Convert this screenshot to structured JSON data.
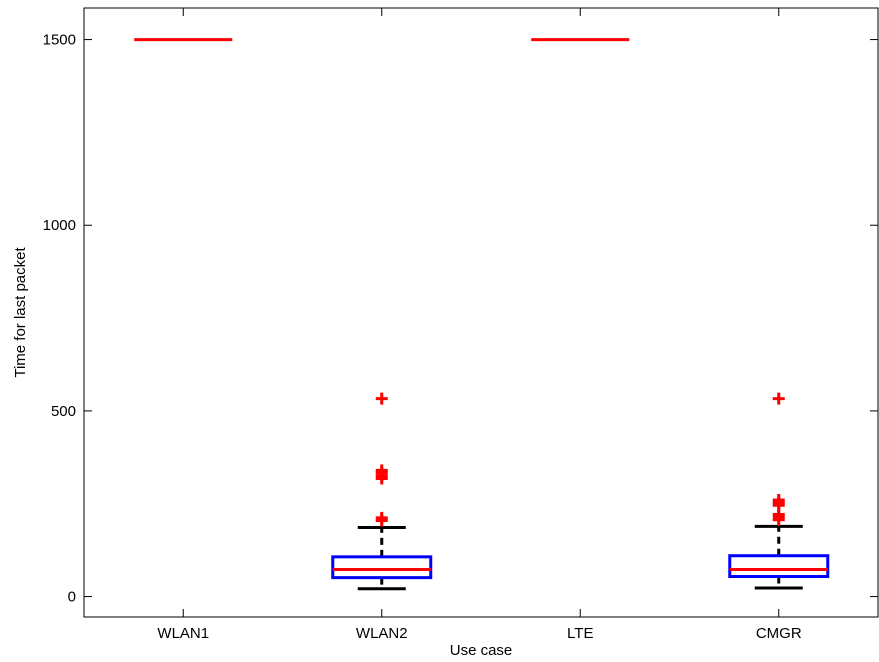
{
  "chart_data": {
    "type": "box",
    "xlabel": "Use case",
    "ylabel": "Time for last packet",
    "categories": [
      "WLAN1",
      "WLAN2",
      "LTE",
      "CMGR"
    ],
    "ylim": [
      -55,
      1585
    ],
    "yticks": [
      0,
      500,
      1000,
      1500
    ],
    "ytick_labels": [
      "0",
      "500",
      "1000",
      "1500"
    ],
    "grid": false,
    "boxes": [
      {
        "category": "WLAN1",
        "median": 1500,
        "q1": 1500,
        "q3": 1500,
        "whisker_low": 1500,
        "whisker_high": 1500,
        "outliers": []
      },
      {
        "category": "WLAN2",
        "median": 73,
        "q1": 51,
        "q3": 107,
        "whisker_low": 21,
        "whisker_high": 186,
        "outliers": [
          205,
          212,
          318,
          325,
          333,
          340,
          533
        ]
      },
      {
        "category": "LTE",
        "median": 1500,
        "q1": 1500,
        "q3": 1500,
        "whisker_low": 1500,
        "whisker_high": 1500,
        "outliers": []
      },
      {
        "category": "CMGR",
        "median": 73,
        "q1": 54,
        "q3": 110,
        "whisker_low": 23,
        "whisker_high": 189,
        "outliers": [
          207,
          214,
          221,
          246,
          253,
          260,
          533
        ]
      }
    ],
    "colors": {
      "box": "#0000ff",
      "median": "#ff0000",
      "whisker": "#000000",
      "outlier": "#ff0000"
    }
  }
}
